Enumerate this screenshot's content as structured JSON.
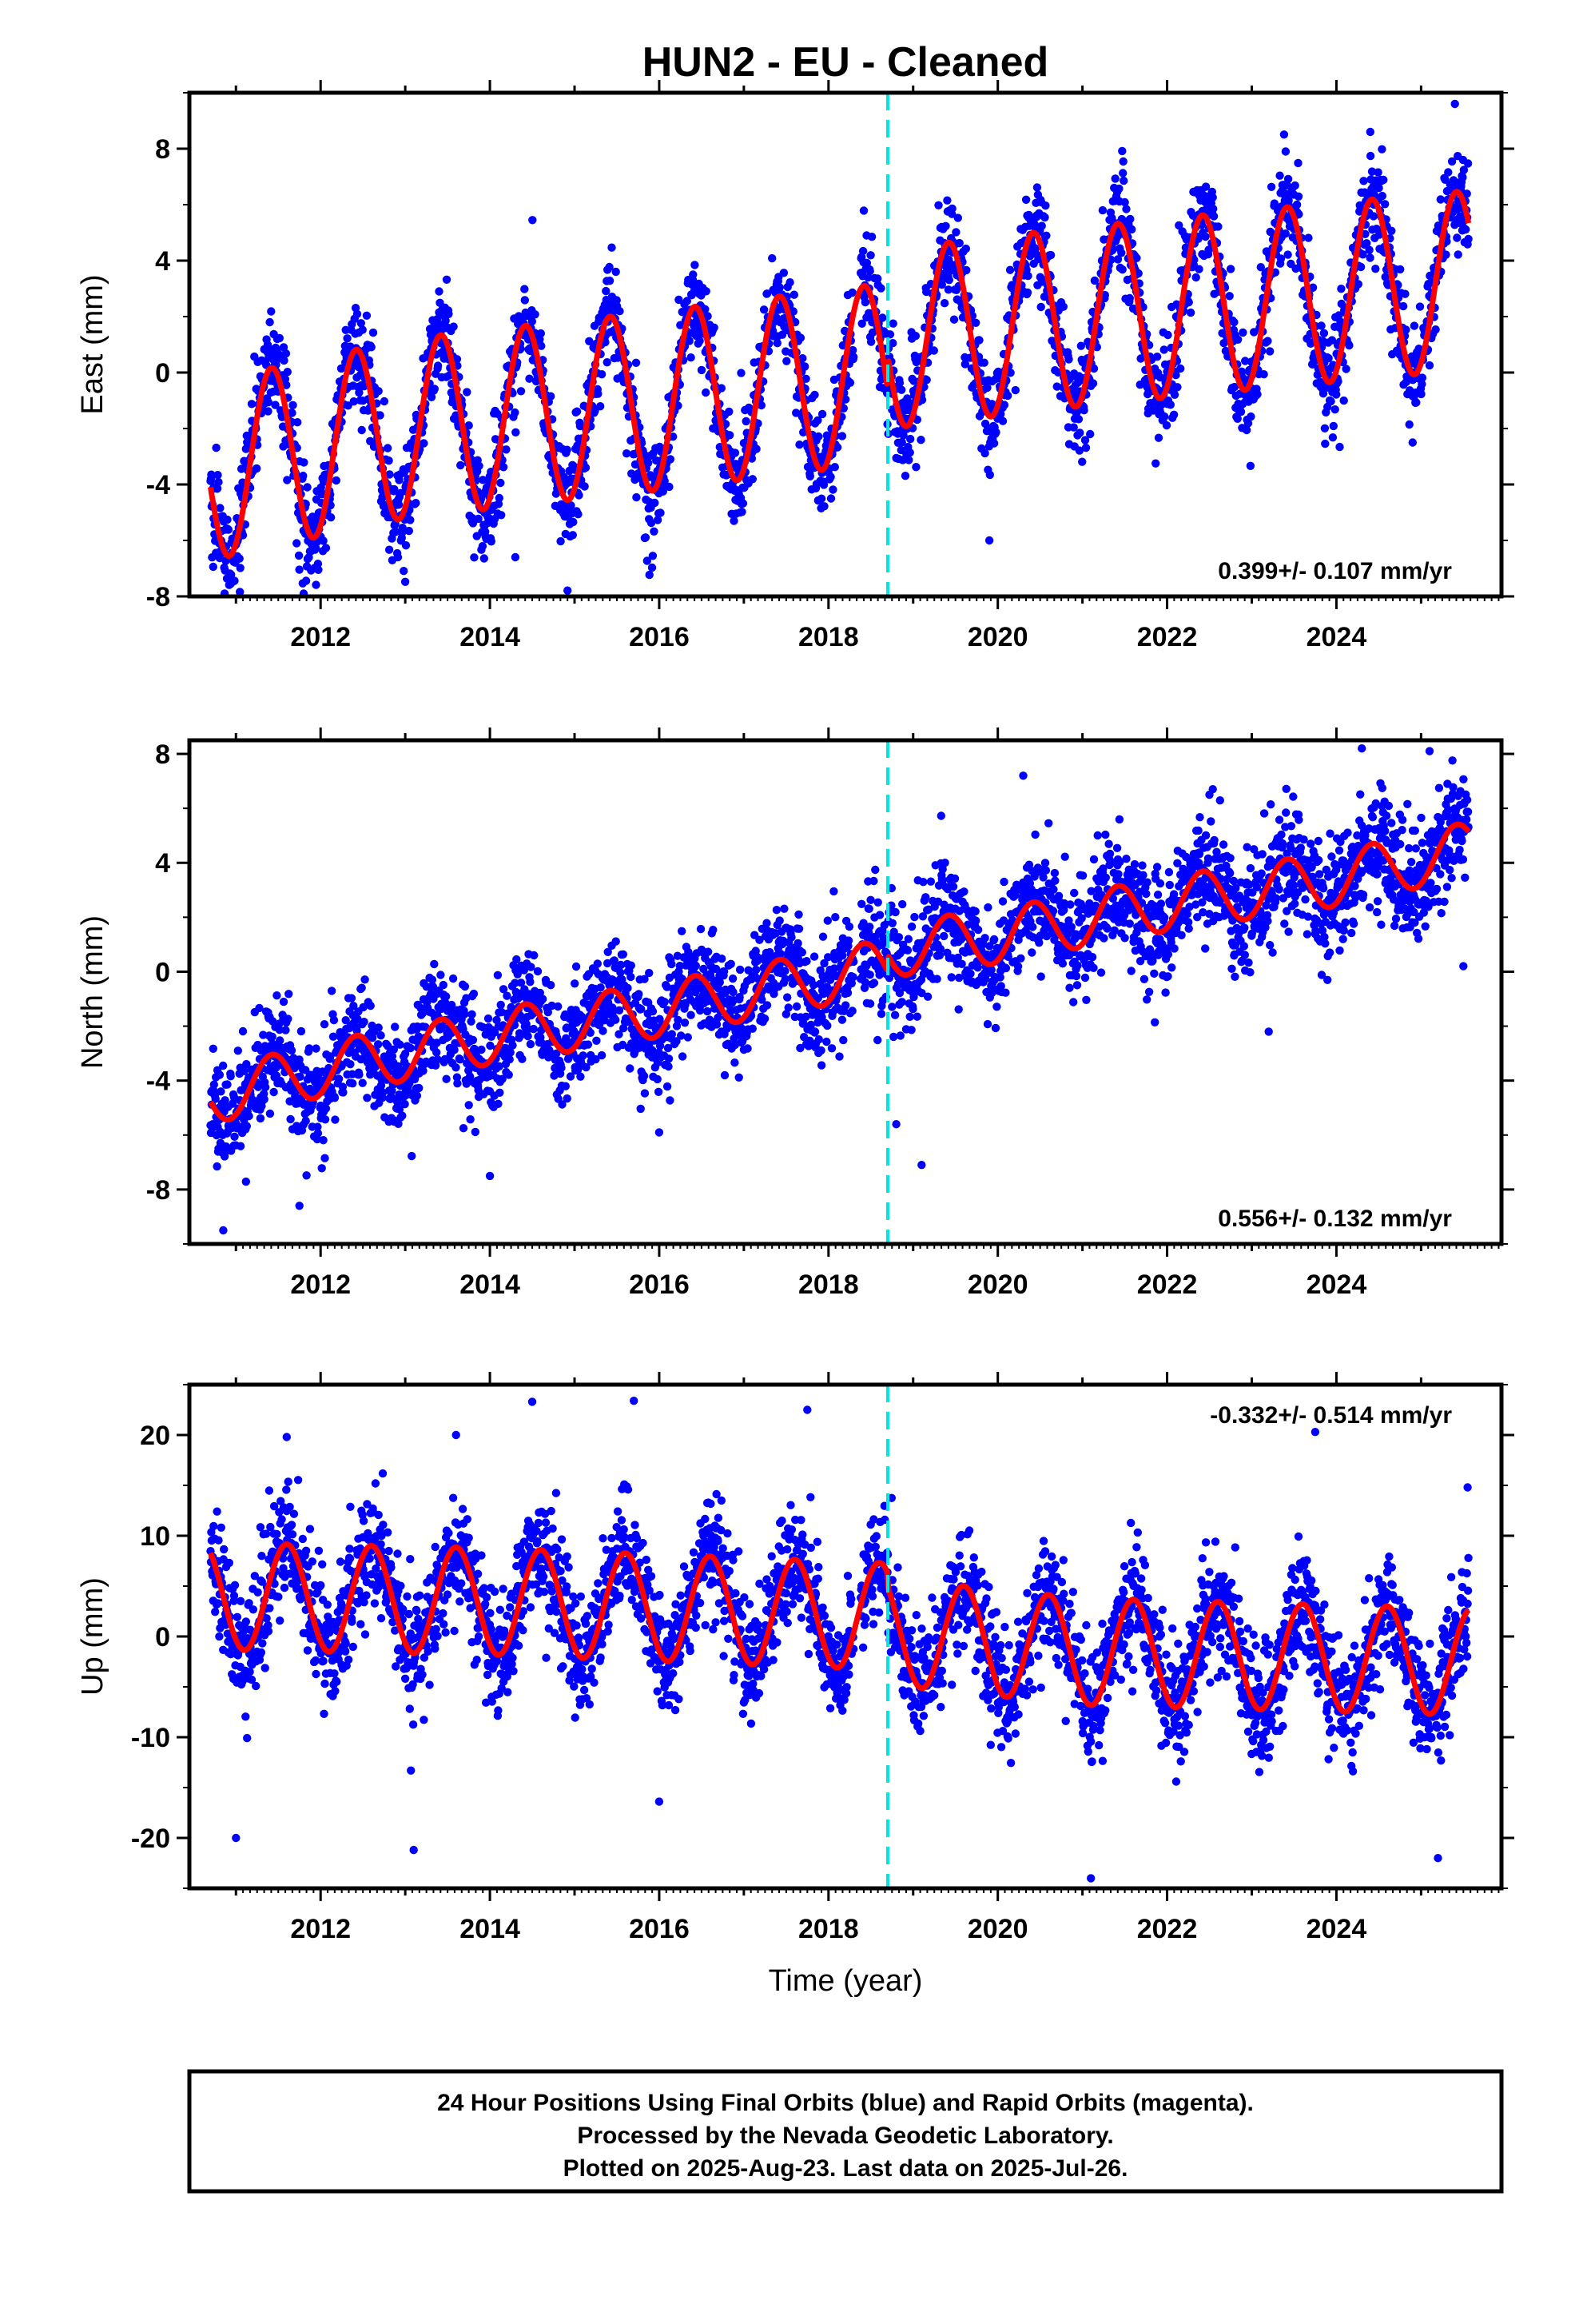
{
  "chart_data": {
    "type": "scatter",
    "title": "HUN2  - EU - Cleaned",
    "x_range": [
      2010.45,
      2025.95
    ],
    "x_ticks": [
      "2012",
      "2014",
      "2016",
      "2018",
      "2020",
      "2022",
      "2024"
    ],
    "xlabel": "Time (year)",
    "event_line_x": 2018.7,
    "colors": {
      "points": "#0000ff",
      "model": "#ff0000",
      "event": "#00e5e5"
    },
    "panels": [
      {
        "ylabel": "East (mm)",
        "ylim": [
          -8,
          10
        ],
        "y_ticks": [
          "8",
          "4",
          "0",
          "-4",
          "-8"
        ],
        "rate": "0.399+/- 0.107 mm/yr",
        "rate_position": "bottom-right",
        "model": {
          "base": [
            [
              2010.7,
              -3.5
            ],
            [
              2013.0,
              -2.0
            ],
            [
              2016.0,
              -1.0
            ],
            [
              2018.69,
              0.0
            ],
            [
              2018.71,
              1.2
            ],
            [
              2021.0,
              2.0
            ],
            [
              2023.0,
              2.6
            ],
            [
              2025.55,
              3.3
            ]
          ],
          "amplitude": 3.2,
          "peak_phase": 0.42,
          "scatter_sd": 0.9
        },
        "points": [
          [
            2011.4,
            1.8
          ],
          [
            2013.4,
            2.9
          ],
          [
            2014.3,
            -6.6
          ],
          [
            2016.4,
            3.5
          ],
          [
            2018.45,
            4.9
          ],
          [
            2019.9,
            -6.0
          ],
          [
            2021.4,
            6.3
          ],
          [
            2023.4,
            7.9
          ],
          [
            2024.4,
            8.6
          ],
          [
            2025.4,
            9.6
          ],
          [
            2011.8,
            -7.9
          ],
          [
            2024.9,
            -2.5
          ]
        ]
      },
      {
        "ylabel": "North (mm)",
        "ylim": [
          -10,
          8.5
        ],
        "y_ticks": [
          "8",
          "4",
          "0",
          "-4",
          "-8"
        ],
        "rate": "0.556+/- 0.132 mm/yr",
        "rate_position": "bottom-right",
        "model": {
          "base": [
            [
              2010.7,
              -4.6
            ],
            [
              2012.0,
              -3.6
            ],
            [
              2014.0,
              -2.4
            ],
            [
              2016.0,
              -1.4
            ],
            [
              2018.69,
              0.2
            ],
            [
              2018.71,
              0.8
            ],
            [
              2020.0,
              1.3
            ],
            [
              2022.0,
              2.5
            ],
            [
              2024.0,
              3.4
            ],
            [
              2025.55,
              4.5
            ]
          ],
          "amplitude": 1.0,
          "peak_phase": 0.42,
          "scatter_sd": 1.0
        },
        "points": [
          [
            2010.85,
            -9.5
          ],
          [
            2011.75,
            -8.6
          ],
          [
            2014.0,
            -7.5
          ],
          [
            2016.0,
            -5.9
          ],
          [
            2019.1,
            -7.1
          ],
          [
            2018.8,
            -5.6
          ],
          [
            2020.3,
            7.2
          ],
          [
            2024.3,
            8.2
          ],
          [
            2025.1,
            8.1
          ],
          [
            2022.5,
            6.5
          ],
          [
            2025.5,
            0.2
          ],
          [
            2023.2,
            -2.2
          ]
        ]
      },
      {
        "ylabel": "Up (mm)",
        "ylim": [
          -25,
          25
        ],
        "y_ticks": [
          "20",
          "10",
          "0",
          "-10",
          "-20"
        ],
        "rate": "-0.332+/- 0.514 mm/yr",
        "rate_position": "top-right",
        "model": {
          "base": [
            [
              2010.7,
              4.0
            ],
            [
              2014.0,
              3.5
            ],
            [
              2018.69,
              2.0
            ],
            [
              2018.71,
              0.5
            ],
            [
              2021.0,
              -1.5
            ],
            [
              2025.55,
              -2.5
            ]
          ],
          "amplitude": 5.3,
          "peak_phase": 0.6,
          "scatter_sd": 2.8
        },
        "points": [
          [
            2011.0,
            -20.0
          ],
          [
            2013.1,
            -21.2
          ],
          [
            2016.0,
            -16.4
          ],
          [
            2021.1,
            -24.0
          ],
          [
            2025.2,
            -22.0
          ],
          [
            2014.5,
            23.3
          ],
          [
            2015.7,
            23.4
          ],
          [
            2017.75,
            22.5
          ],
          [
            2023.75,
            20.3
          ],
          [
            2011.6,
            19.8
          ],
          [
            2013.6,
            20.0
          ],
          [
            2025.55,
            14.8
          ]
        ]
      }
    ]
  },
  "footer": {
    "lines": [
      "24 Hour Positions Using Final Orbits (blue) and Rapid Orbits (magenta).",
      "Processed by the Nevada Geodetic Laboratory.",
      "Plotted on 2025-Aug-23. Last data on 2025-Jul-26."
    ]
  }
}
